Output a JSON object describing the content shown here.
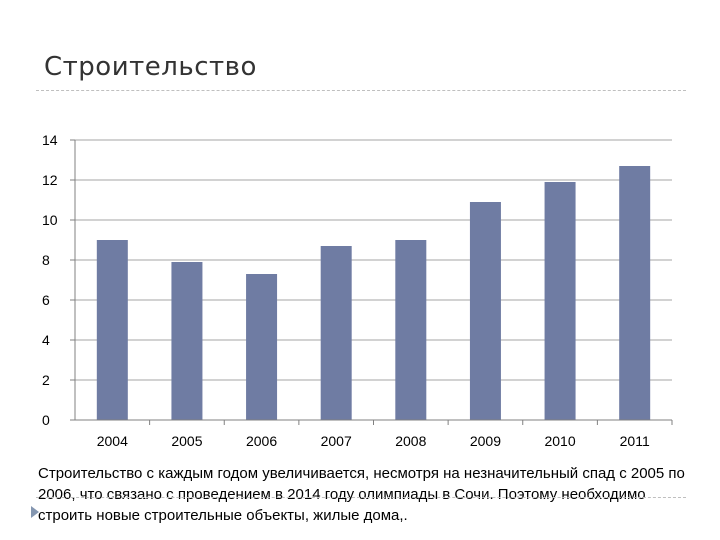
{
  "slide": {
    "title": "Строительство",
    "caption": "Строительство  с каждым годом увеличивается, несмотря на незначительный спад с 2005 по 2006, что связано с проведением  в 2014 году олимпиады в Сочи. Поэтому необходимо строить новые строительные объекты, жилые дома,."
  },
  "colors": {
    "bar": "#6f7ca3",
    "gridline": "#a6a6a6",
    "axis": "#808080",
    "bullet": "#8496b0"
  },
  "chart_data": {
    "type": "bar",
    "title": "",
    "xlabel": "",
    "ylabel": "",
    "categories": [
      "2004",
      "2005",
      "2006",
      "2007",
      "2008",
      "2009",
      "2010",
      "2011"
    ],
    "values": [
      9.0,
      7.9,
      7.3,
      8.7,
      9.0,
      10.9,
      11.9,
      12.7
    ],
    "ylim": [
      0,
      14
    ],
    "yticks": [
      "0",
      "2",
      "4",
      "6",
      "8",
      "10",
      "12",
      "14"
    ],
    "grid": true,
    "legend": "none"
  }
}
